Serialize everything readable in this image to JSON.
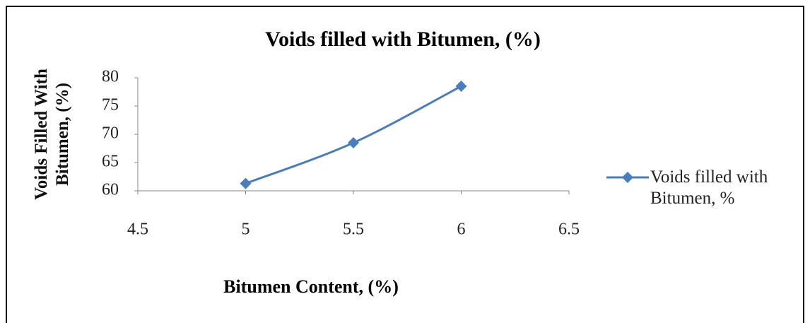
{
  "chart_data": {
    "type": "line",
    "title": "Voids filled with Bitumen, (%)",
    "x_label": "Bitumen Content, (%)",
    "y_label": "Voids Filled With Bitumen, (%)",
    "x": [
      5,
      5.5,
      6
    ],
    "series": [
      {
        "name": "Voids filled with Bitumen, %",
        "color": "#4a7ebb",
        "values": [
          61.3,
          68.5,
          78.5
        ]
      }
    ],
    "xlim": [
      4.5,
      6.5
    ],
    "xticks": [
      4.5,
      5,
      5.5,
      6,
      6.5
    ],
    "ylim": [
      60,
      80
    ],
    "yticks": [
      60,
      65,
      70,
      75,
      80
    ],
    "grid": false,
    "legend": "right"
  }
}
